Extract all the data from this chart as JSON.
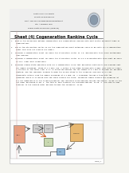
{
  "background_color": "#f5f5f0",
  "page_bg": "#ffffff",
  "header_bg": "#eeeeee",
  "title": "Sheet (4) Cogeneration Rankine Cycle",
  "university_lines": [
    "South Valley University",
    "Faculty of Engineering",
    "Elect. Mechanical Engineering Department",
    "4th  Academic Year",
    "Power Plants Technology (MPE405)"
  ],
  "questions": [
    "1.  What is the difference between cogeneration and regeneration? Explain with neat sketch different types of\n     cogeneration?",
    "2.  How is the utilization factor εu for the cogeneration plant obtained? Could εu be unity for a cogeneration\n     plant that does not produce any power?",
    "3.  Consider a cogeneration plant for which the utilization factor is 1.0, meaning with this cycle sustainable\n     now? Explain.",
    "4.  Consider a cogeneration plant for which the utilization factor is 0.5 b associated with this plant be zero?\n     If yes, under what conditions?",
    "5.  provides steady-state operating data for a cogeneration cycle that generates electricity and provides heat\n     for campus buildings. Steam at 1.5 MPa, 280° C enters a two-stage turbine with a mass flow rate of 1 kg/s.\n     A fraction of the total flow, 0.15, is extracted between the two stages at 0.2 MPa to provide for building\n     heating, and the remainder expands through the second stage to the condenser pressure of 0.1 bar.\n     Condensate returns from the campus buildings at 0.1 MPa, 60° C undergoes through a trap into the\n     condenser where it is mixed with the steam leaving the there. Condensed liquid leaving the condenser at\n     0.1 bar temperature is the turbine/condenser the resulting fluid passing through the boiler. In kW, is the\n     net power developed is kW. 2. the rate of heat transfer for building heating, in kW. 3. the rate of heat\n     transfer to the cooling water passing through the condenser, in kW."
  ],
  "footer_text": "Page | 1",
  "diagram": {
    "boiler_color": "#e8a080",
    "turbine_color": "#d0d0d0",
    "condenser_color": "#e8b870",
    "pump_color": "#90b8d8",
    "hx_color": "#c8d8b0",
    "line_color": "#444444"
  }
}
